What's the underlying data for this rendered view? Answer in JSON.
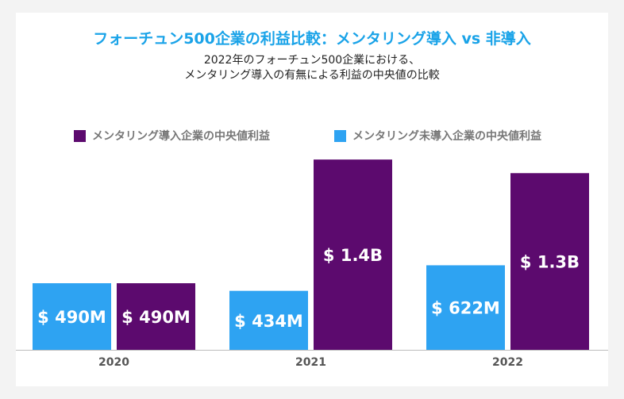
{
  "colors": {
    "title": "#1aa3e8",
    "mentored": "#5c0a6e",
    "not_mentored": "#2ea3f2",
    "axis": "#bbbbbb"
  },
  "chart_data": {
    "type": "bar",
    "title": "フォーチュン500企業の利益比較：メンタリング導入 vs 非導入",
    "subtitle_lines": [
      "2022年のフォーチュン500企業における、",
      "メンタリング導入の有無による利益の中央値の比較"
    ],
    "categories": [
      "2020",
      "2021",
      "2022"
    ],
    "unit": "USD",
    "series": [
      {
        "name": "メンタリング未導入企業の中央値利益",
        "color": "#2ea3f2",
        "values": [
          490000000,
          434000000,
          622000000
        ],
        "labels": [
          "$ 490M",
          "$ 434M",
          "$ 622M"
        ]
      },
      {
        "name": "メンタリング導入企業の中央値利益",
        "color": "#5c0a6e",
        "values": [
          490000000,
          1400000000,
          1300000000
        ],
        "labels": [
          "$ 490M",
          "$ 1.4B",
          "$ 1.3B"
        ]
      }
    ],
    "legend_order": [
      1,
      0
    ],
    "ylim": [
      0,
      1500000000
    ],
    "grid": false,
    "legend_position": "top"
  }
}
